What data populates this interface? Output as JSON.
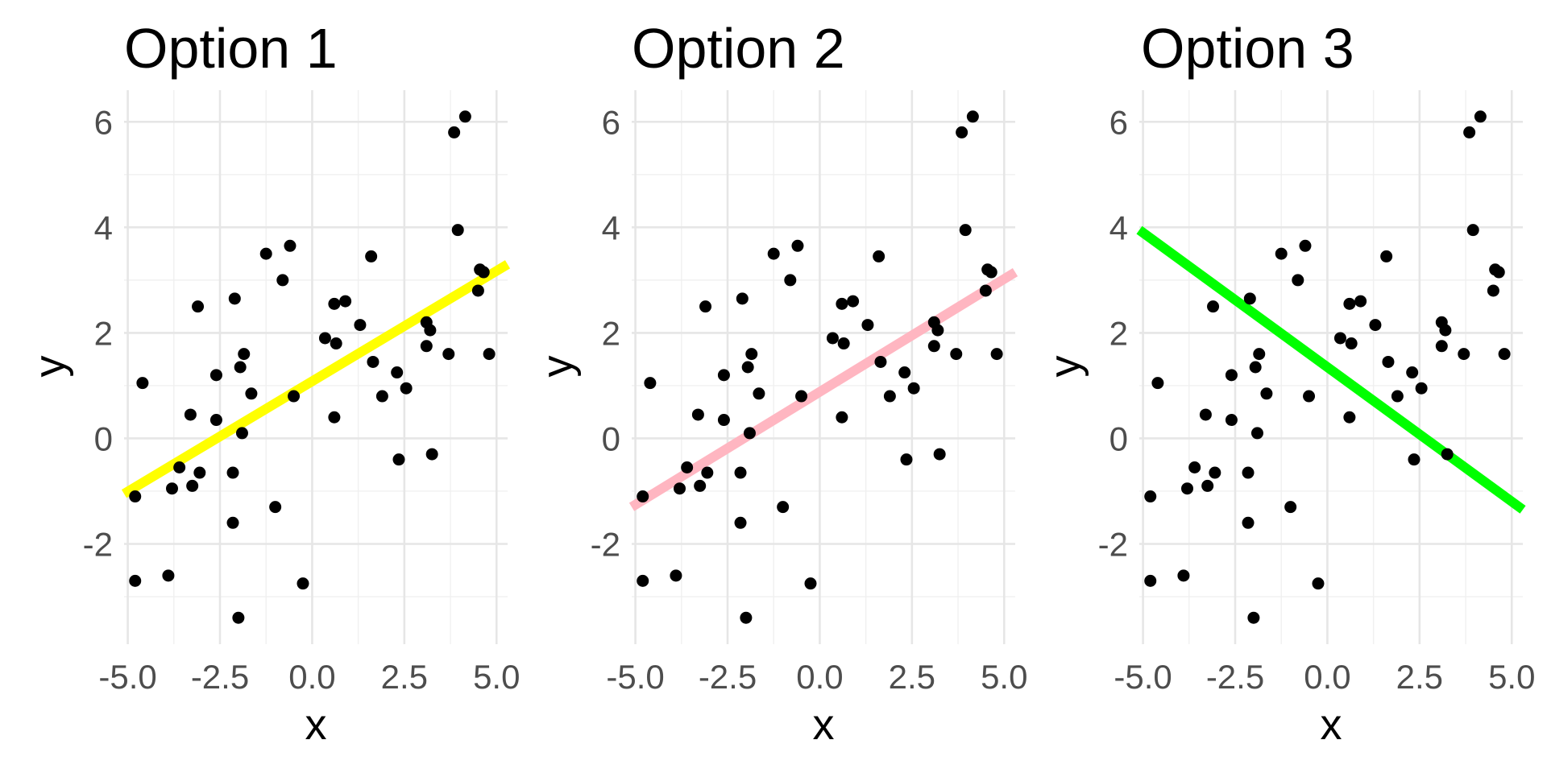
{
  "chart_data": [
    {
      "type": "scatter",
      "title": "Option 1",
      "xlabel": "x",
      "ylabel": "y",
      "xlim": [
        -5.1,
        5.3
      ],
      "ylim": [
        -3.9,
        6.6
      ],
      "xticks": [
        "-5.0",
        "-2.5",
        "0.0",
        "2.5",
        "5.0"
      ],
      "yticks": [
        "-2",
        "0",
        "2",
        "4",
        "6"
      ],
      "grid": true,
      "fit_line": {
        "x": [
          -5.1,
          5.3
        ],
        "y": [
          -1.05,
          3.3
        ],
        "color": "#ffff00"
      }
    },
    {
      "type": "scatter",
      "title": "Option 2",
      "xlabel": "x",
      "ylabel": "y",
      "xlim": [
        -5.1,
        5.3
      ],
      "ylim": [
        -3.9,
        6.6
      ],
      "xticks": [
        "-5.0",
        "-2.5",
        "0.0",
        "2.5",
        "5.0"
      ],
      "yticks": [
        "-2",
        "0",
        "2",
        "4",
        "6"
      ],
      "grid": true,
      "fit_line": {
        "x": [
          -5.1,
          5.3
        ],
        "y": [
          -1.3,
          3.15
        ],
        "color": "#ffb6c1"
      }
    },
    {
      "type": "scatter",
      "title": "Option 3",
      "xlabel": "x",
      "ylabel": "y",
      "xlim": [
        -5.1,
        5.3
      ],
      "ylim": [
        -3.9,
        6.6
      ],
      "xticks": [
        "-5.0",
        "-2.5",
        "0.0",
        "2.5",
        "5.0"
      ],
      "yticks": [
        "-2",
        "0",
        "2",
        "4",
        "6"
      ],
      "grid": true,
      "fit_line": {
        "x": [
          -5.1,
          5.3
        ],
        "y": [
          3.95,
          -1.35
        ],
        "color": "#00ff00"
      }
    }
  ],
  "points": [
    {
      "x": -4.8,
      "y": -1.1
    },
    {
      "x": -4.8,
      "y": -2.7
    },
    {
      "x": -4.6,
      "y": 1.05
    },
    {
      "x": -3.9,
      "y": -2.6
    },
    {
      "x": -3.8,
      "y": -0.95
    },
    {
      "x": -3.6,
      "y": -0.55
    },
    {
      "x": -3.3,
      "y": 0.45
    },
    {
      "x": -3.25,
      "y": -0.9
    },
    {
      "x": -3.1,
      "y": 2.5
    },
    {
      "x": -3.05,
      "y": -0.65
    },
    {
      "x": -2.6,
      "y": 1.2
    },
    {
      "x": -2.6,
      "y": 0.35
    },
    {
      "x": -2.15,
      "y": -0.65
    },
    {
      "x": -2.1,
      "y": 2.65
    },
    {
      "x": -2.15,
      "y": -1.6
    },
    {
      "x": -1.95,
      "y": 1.35
    },
    {
      "x": -1.85,
      "y": 1.6
    },
    {
      "x": -1.9,
      "y": 0.1
    },
    {
      "x": -1.65,
      "y": 0.85
    },
    {
      "x": -2.0,
      "y": -3.4
    },
    {
      "x": -1.25,
      "y": 3.5
    },
    {
      "x": -1.0,
      "y": -1.3
    },
    {
      "x": -0.8,
      "y": 3.0
    },
    {
      "x": -0.6,
      "y": 3.65
    },
    {
      "x": -0.5,
      "y": 0.8
    },
    {
      "x": -0.25,
      "y": -2.75
    },
    {
      "x": 0.35,
      "y": 1.9
    },
    {
      "x": 0.6,
      "y": 2.55
    },
    {
      "x": 0.65,
      "y": 1.8
    },
    {
      "x": 0.6,
      "y": 0.4
    },
    {
      "x": 0.9,
      "y": 2.6
    },
    {
      "x": 1.3,
      "y": 2.15
    },
    {
      "x": 1.6,
      "y": 3.45
    },
    {
      "x": 1.65,
      "y": 1.45
    },
    {
      "x": 1.9,
      "y": 0.8
    },
    {
      "x": 2.3,
      "y": 1.25
    },
    {
      "x": 2.35,
      "y": -0.4
    },
    {
      "x": 2.55,
      "y": 0.95
    },
    {
      "x": 3.1,
      "y": 2.2
    },
    {
      "x": 3.1,
      "y": 1.75
    },
    {
      "x": 3.2,
      "y": 2.05
    },
    {
      "x": 3.25,
      "y": -0.3
    },
    {
      "x": 3.7,
      "y": 1.6
    },
    {
      "x": 3.85,
      "y": 5.8
    },
    {
      "x": 3.95,
      "y": 3.95
    },
    {
      "x": 4.15,
      "y": 6.1
    },
    {
      "x": 4.5,
      "y": 2.8
    },
    {
      "x": 4.55,
      "y": 3.2
    },
    {
      "x": 4.65,
      "y": 3.15
    },
    {
      "x": 4.8,
      "y": 1.6
    }
  ]
}
